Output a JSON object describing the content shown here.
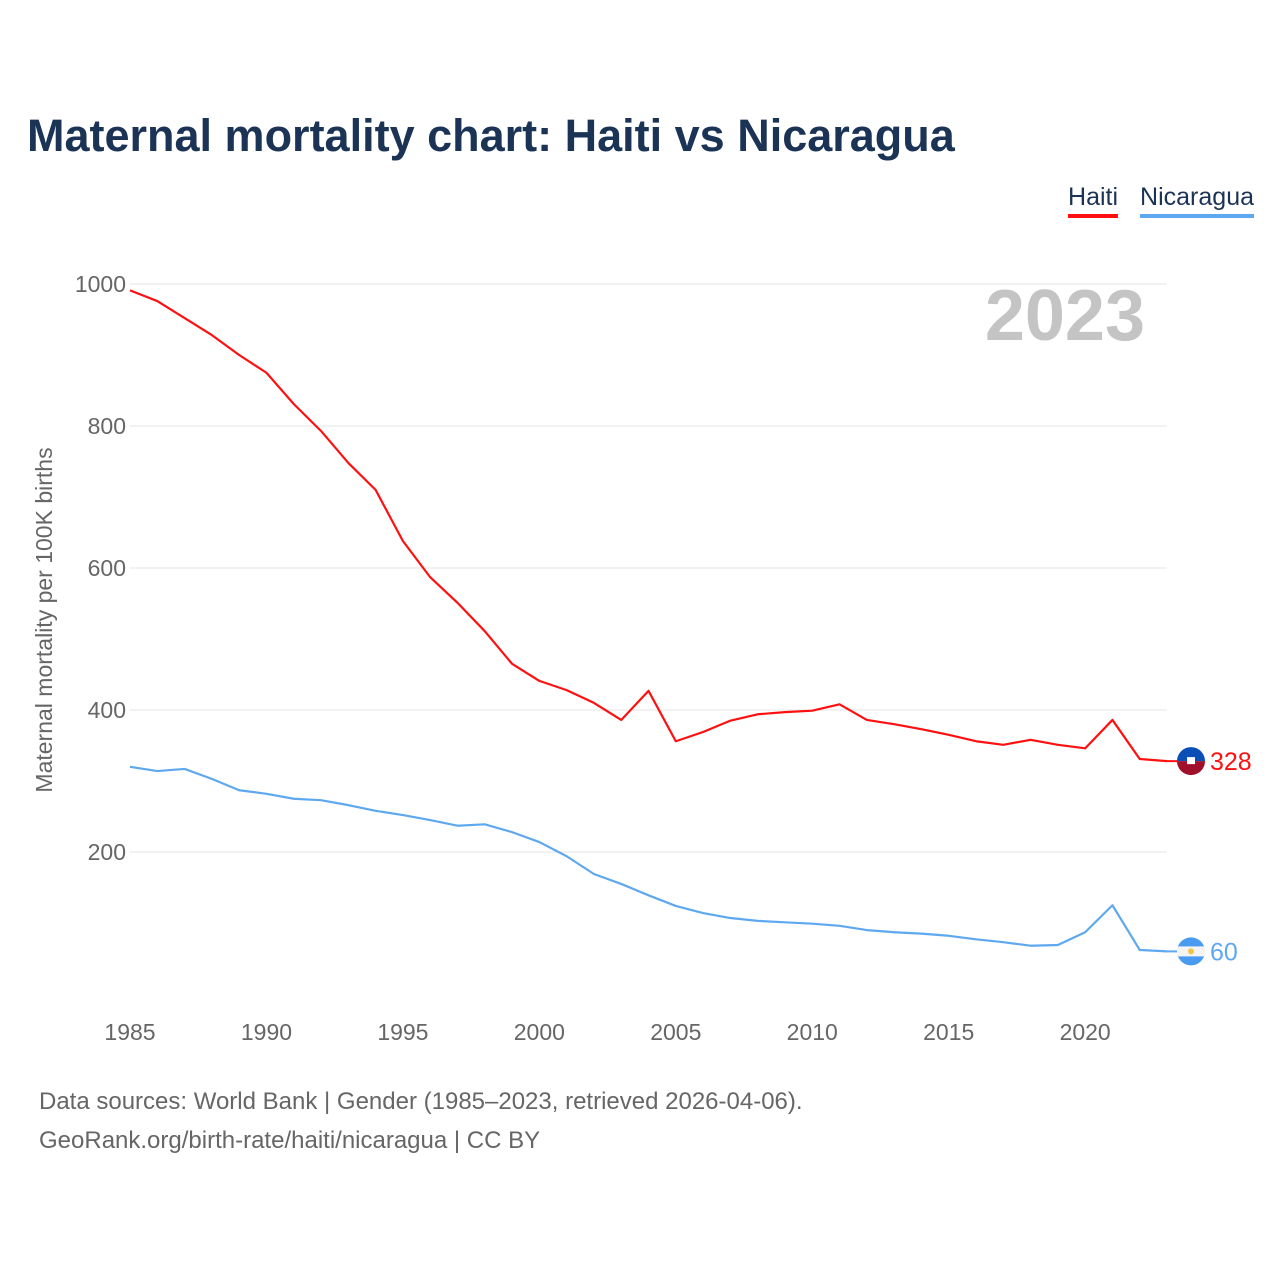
{
  "title": "Maternal mortality chart: Haiti vs Nicaragua",
  "legend": [
    "Haiti",
    "Nicaragua"
  ],
  "colors": {
    "Haiti": "#ff1010",
    "Nicaragua": "#5ea8f0"
  },
  "year_label": "2023",
  "end_labels": {
    "Haiti": "328",
    "Nicaragua": "60"
  },
  "footer": {
    "line1": "Data sources: World Bank | Gender (1985–2023, retrieved 2026-04-06).",
    "line2": "GeoRank.org/birth-rate/haiti/nicaragua | CC BY"
  },
  "chart_data": {
    "type": "line",
    "title": "Maternal mortality chart: Haiti vs Nicaragua",
    "xlabel": "",
    "ylabel": "Maternal mortality per 100K births",
    "xlim": [
      1985,
      2023
    ],
    "ylim": [
      0,
      1000
    ],
    "xticks": [
      1985,
      1990,
      1995,
      2000,
      2005,
      2010,
      2015,
      2020
    ],
    "yticks": [
      200,
      400,
      600,
      800,
      1000
    ],
    "grid": true,
    "legend_position": "top-right",
    "x": [
      1985,
      1986,
      1987,
      1988,
      1989,
      1990,
      1991,
      1992,
      1993,
      1994,
      1995,
      1996,
      1997,
      1998,
      1999,
      2000,
      2001,
      2002,
      2003,
      2004,
      2005,
      2006,
      2007,
      2008,
      2009,
      2010,
      2011,
      2012,
      2013,
      2014,
      2015,
      2016,
      2017,
      2018,
      2019,
      2020,
      2021,
      2022,
      2023
    ],
    "series": [
      {
        "name": "Haiti",
        "values": [
          991,
          976,
          952,
          928,
          900,
          875,
          831,
          793,
          748,
          710,
          638,
          587,
          551,
          511,
          465,
          441,
          428,
          410,
          386,
          427,
          356,
          369,
          385,
          394,
          397,
          399,
          408,
          386,
          380,
          373,
          365,
          356,
          351,
          358,
          351,
          346,
          386,
          331,
          328
        ]
      },
      {
        "name": "Nicaragua",
        "values": [
          320,
          314,
          317,
          303,
          287,
          282,
          275,
          273,
          266,
          258,
          252,
          245,
          237,
          239,
          228,
          214,
          194,
          169,
          155,
          139,
          124,
          114,
          107,
          103,
          101,
          99,
          96,
          90,
          87,
          85,
          82,
          77,
          73,
          68,
          69,
          87,
          125,
          62,
          60
        ]
      }
    ]
  }
}
